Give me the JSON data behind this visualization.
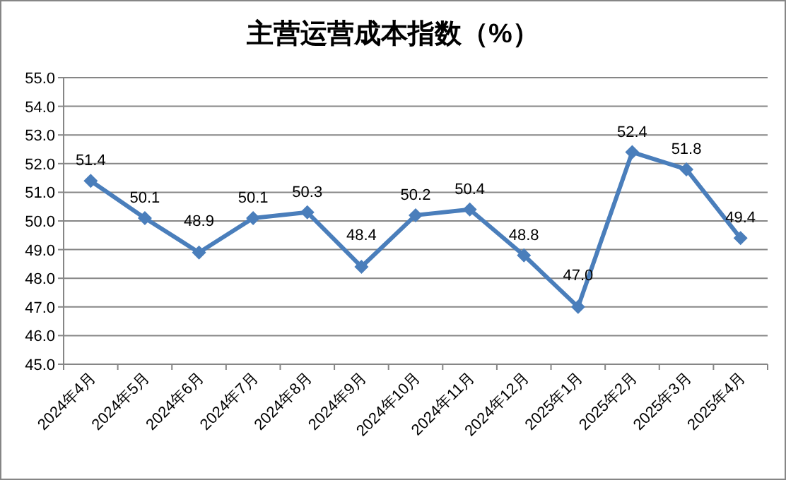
{
  "chart_data": {
    "type": "line",
    "title": "主营运营成本指数（%）",
    "categories": [
      "2024年4月",
      "2024年5月",
      "2024年6月",
      "2024年7月",
      "2024年8月",
      "2024年9月",
      "2024年10月",
      "2024年11月",
      "2024年12月",
      "2025年1月",
      "2025年2月",
      "2025年3月",
      "2025年4月"
    ],
    "series": [
      {
        "color": "#4a7ebb",
        "values": [
          51.4,
          50.1,
          48.9,
          50.1,
          50.3,
          48.4,
          50.2,
          50.4,
          48.8,
          47.0,
          52.4,
          51.8,
          49.4
        ],
        "value_labels": [
          "51.4",
          "50.1",
          "48.9",
          "50.1",
          "50.3",
          "48.4",
          "50.2",
          "50.4",
          "48.8",
          "47.0",
          "52.4",
          "51.8",
          "49.4"
        ]
      }
    ],
    "ylim": [
      45,
      55
    ],
    "yticks": [
      {
        "value": 45,
        "label": "45.0"
      },
      {
        "value": 46,
        "label": "46.0"
      },
      {
        "value": 47,
        "label": "47.0"
      },
      {
        "value": 48,
        "label": "48.0"
      },
      {
        "value": 49,
        "label": "49.0"
      },
      {
        "value": 50,
        "label": "50.0"
      },
      {
        "value": 51,
        "label": "51.0"
      },
      {
        "value": 52,
        "label": "52.0"
      },
      {
        "value": 53,
        "label": "53.0"
      },
      {
        "value": 54,
        "label": "54.0"
      },
      {
        "value": 55,
        "label": "55.0"
      }
    ],
    "grid": "y",
    "marker": "diamond",
    "line_style": "solid"
  }
}
